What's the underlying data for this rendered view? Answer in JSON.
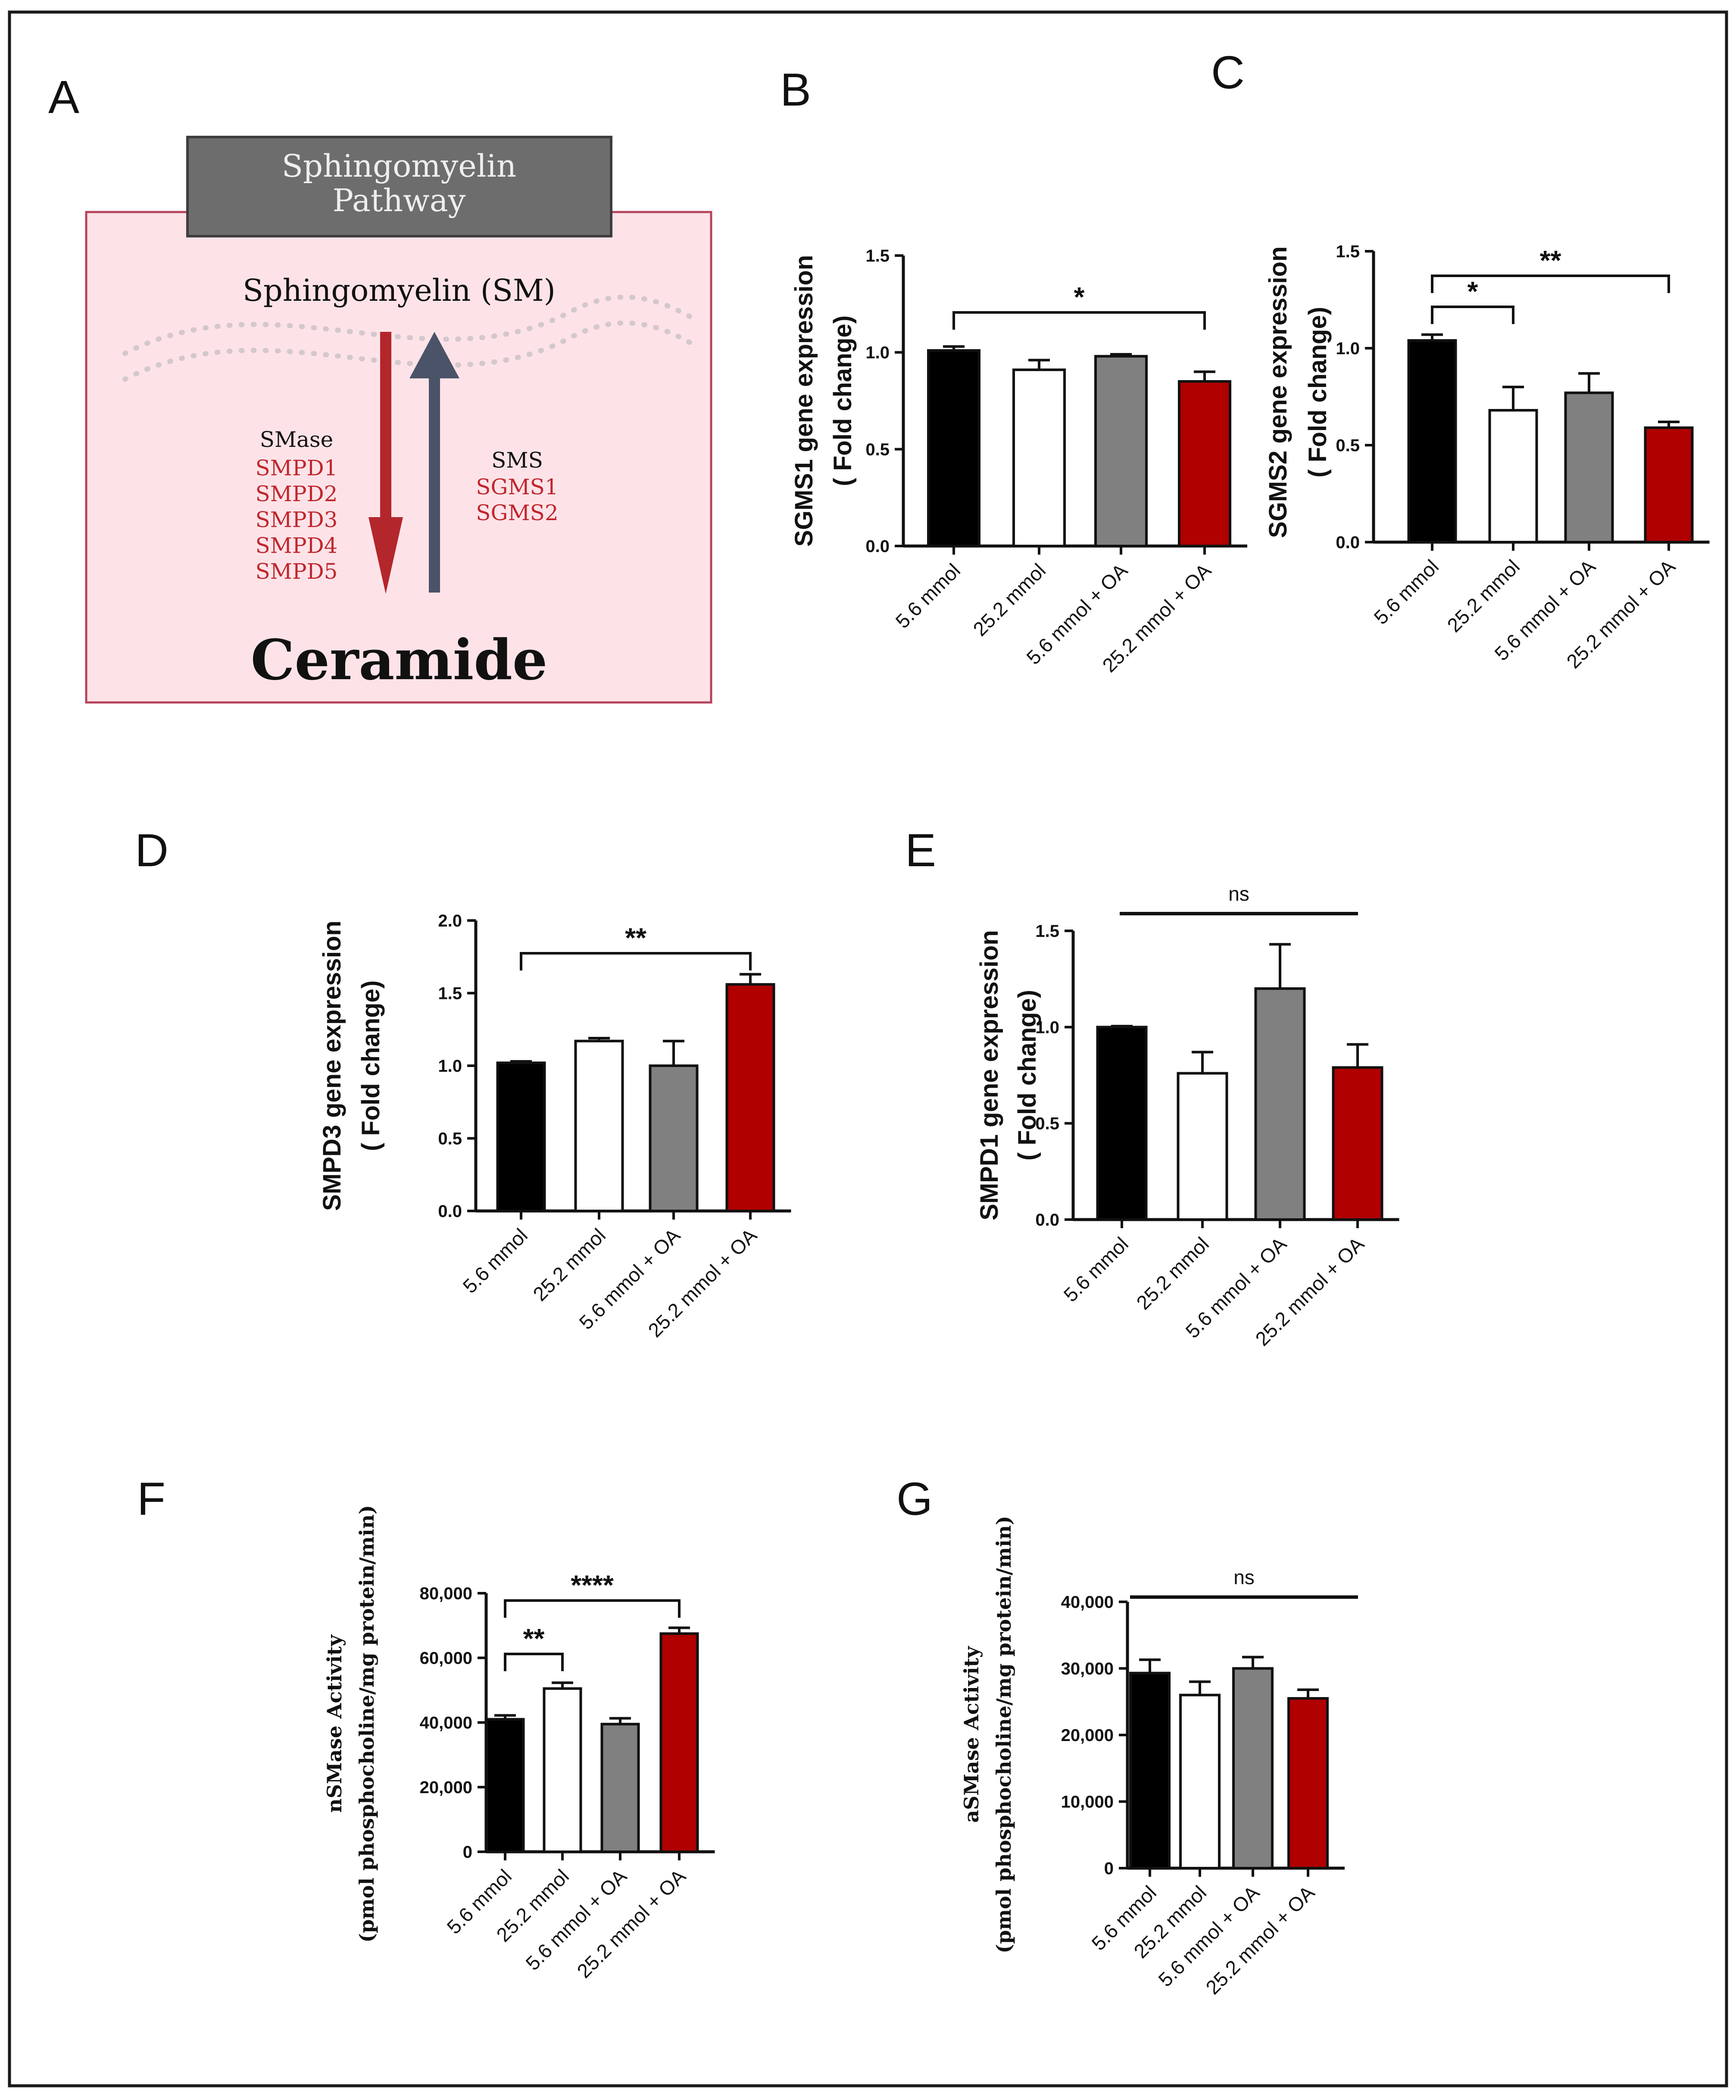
{
  "panel_a": {
    "letter": "A",
    "header": [
      "Sphingomyelin",
      "Pathway"
    ],
    "top_label": "Sphingomyelin (SM)",
    "smase": {
      "label": "SMase",
      "genes": [
        "SMPD1",
        "SMPD2",
        "SMPD3",
        "SMPD4",
        "SMPD5"
      ]
    },
    "sms": {
      "label": "SMS",
      "genes": [
        "SGMS1",
        "SGMS2"
      ]
    },
    "bottom_label": "Ceramide",
    "colors": {
      "header_bg": "#6d6d6d",
      "box_bg": "#fde3e8",
      "box_border": "#b5435b",
      "gene_red": "#c0272d",
      "arrow_down": "#b3262c",
      "arrow_up": "#4b5368"
    }
  },
  "chart_data": [
    {
      "panel": "B",
      "type": "bar",
      "categories": [
        "5.6 mmol",
        "25.2 mmol",
        "5.6 mmol + OA",
        "25.2 mmol + OA"
      ],
      "values": [
        1.01,
        0.91,
        0.98,
        0.85
      ],
      "errors": [
        0.02,
        0.05,
        0.01,
        0.05
      ],
      "colors": [
        "#000000",
        "#ffffff",
        "#808080",
        "#b00000"
      ],
      "ylabel": [
        "SGMS1 gene expression",
        "( Fold change)"
      ],
      "ylim": [
        0,
        1.5
      ],
      "yticks": [
        "0.0",
        "0.5",
        "1.0",
        "1.5"
      ],
      "significance": [
        {
          "from": 0,
          "to": 3,
          "label": "*"
        }
      ]
    },
    {
      "panel": "C",
      "type": "bar",
      "categories": [
        "5.6 mmol",
        "25.2 mmol",
        "5.6 mmol + OA",
        "25.2 mmol + OA"
      ],
      "values": [
        1.04,
        0.68,
        0.77,
        0.59
      ],
      "errors": [
        0.03,
        0.12,
        0.1,
        0.03
      ],
      "colors": [
        "#000000",
        "#ffffff",
        "#808080",
        "#b00000"
      ],
      "ylabel": [
        "SGMS2 gene expression",
        "( Fold change)"
      ],
      "ylim": [
        0,
        1.5
      ],
      "yticks": [
        "0.0",
        "0.5",
        "1.0",
        "1.5"
      ],
      "significance": [
        {
          "from": 0,
          "to": 1,
          "label": "*"
        },
        {
          "from": 0,
          "to": 3,
          "label": "**"
        }
      ]
    },
    {
      "panel": "D",
      "type": "bar",
      "categories": [
        "5.6 mmol",
        "25.2 mmol",
        "5.6 mmol + OA",
        "25.2 mmol + OA"
      ],
      "values": [
        1.02,
        1.17,
        1.0,
        1.56
      ],
      "errors": [
        0.01,
        0.02,
        0.17,
        0.07
      ],
      "colors": [
        "#000000",
        "#ffffff",
        "#808080",
        "#b00000"
      ],
      "ylabel": [
        "SMPD3 gene expression",
        "( Fold change)"
      ],
      "ylim": [
        0,
        2.0
      ],
      "yticks": [
        "0.0",
        "0.5",
        "1.0",
        "1.5",
        "2.0"
      ],
      "significance": [
        {
          "from": 0,
          "to": 3,
          "label": "**"
        }
      ]
    },
    {
      "panel": "E",
      "type": "bar",
      "categories": [
        "5.6 mmol",
        "25.2 mmol",
        "5.6 mmol + OA",
        "25.2 mmol + OA"
      ],
      "values": [
        1.0,
        0.76,
        1.2,
        0.79
      ],
      "errors": [
        0.005,
        0.11,
        0.23,
        0.12
      ],
      "colors": [
        "#000000",
        "#ffffff",
        "#808080",
        "#b00000"
      ],
      "ylabel": [
        "SMPD1 gene expression",
        "( Fold change)"
      ],
      "ylim": [
        0,
        1.5
      ],
      "yticks": [
        "0.0",
        "0.5",
        "1.0",
        "1.5"
      ],
      "ns": "ns"
    },
    {
      "panel": "F",
      "type": "bar",
      "categories": [
        "5.6 mmol",
        "25.2 mmol",
        "5.6 mmol + OA",
        "25.2 mmol + OA"
      ],
      "values": [
        41000,
        50500,
        39500,
        67500
      ],
      "errors": [
        1200,
        1800,
        1800,
        1800
      ],
      "colors": [
        "#000000",
        "#ffffff",
        "#808080",
        "#b00000"
      ],
      "ylabel": [
        "nSMase Activity",
        "(pmol phosphocholine/mg protein/min)"
      ],
      "ylim": [
        0,
        80000
      ],
      "yticks": [
        "0",
        "20,000",
        "40,000",
        "60,000",
        "80,000"
      ],
      "significance": [
        {
          "from": 0,
          "to": 1,
          "label": "**"
        },
        {
          "from": 0,
          "to": 3,
          "label": "****"
        }
      ]
    },
    {
      "panel": "G",
      "type": "bar",
      "categories": [
        "5.6 mmol",
        "25.2 mmol",
        "5.6 mmol + OA",
        "25.2 mmol + OA"
      ],
      "values": [
        29300,
        26000,
        30000,
        25500
      ],
      "errors": [
        2000,
        2000,
        1700,
        1300
      ],
      "colors": [
        "#000000",
        "#ffffff",
        "#808080",
        "#b00000"
      ],
      "ylabel": [
        "aSMase Activity",
        "(pmol phosphocholine/mg protein/min)"
      ],
      "ylim": [
        0,
        40000
      ],
      "yticks": [
        "0",
        "10,000",
        "20,000",
        "30,000",
        "40,000"
      ],
      "ns": "ns"
    }
  ]
}
